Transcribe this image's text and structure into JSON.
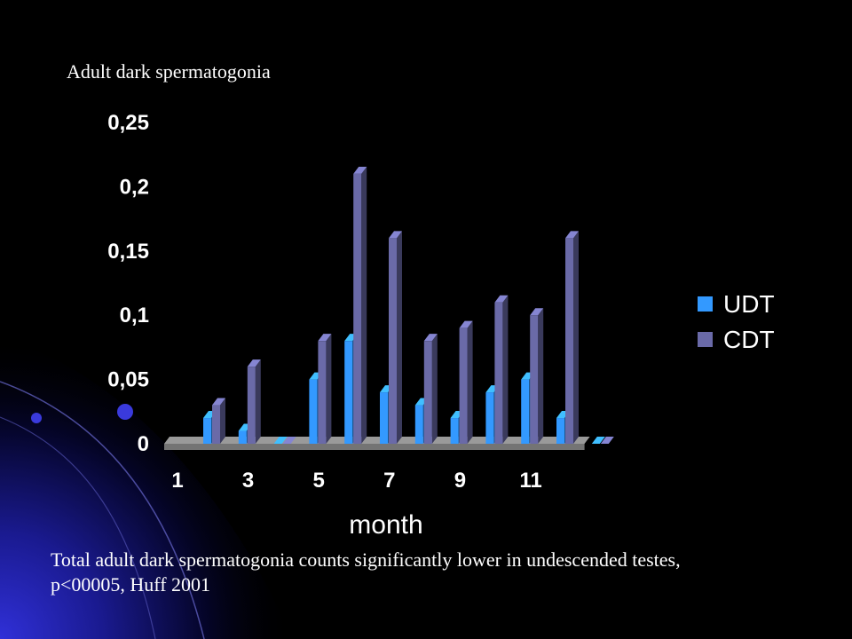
{
  "slide": {
    "title": "Adult dark spermatogonia",
    "caption_line1": "Total adult dark spermatogonia counts significantly lower in undescended testes,",
    "caption_line2": "p<00005, Huff 2001"
  },
  "colors": {
    "background": "#000000",
    "udt": "#3399ff",
    "cdt": "#6a6aa8",
    "floor": "#9a9a9a"
  },
  "chart_data": {
    "type": "bar",
    "style": "3d-clustered",
    "categories": [
      "1",
      "2",
      "3",
      "4",
      "5",
      "6",
      "7",
      "8",
      "9",
      "10",
      "11",
      "12"
    ],
    "x_tick_labels": [
      "1",
      "3",
      "5",
      "7",
      "9",
      "11"
    ],
    "xlabel": "month",
    "ylabel": "",
    "ylim": [
      0,
      0.25
    ],
    "y_ticks": [
      0,
      0.05,
      0.1,
      0.15,
      0.2,
      0.25
    ],
    "y_tick_labels": [
      "0",
      "0,05",
      "0,1",
      "0,15",
      "0,2",
      "0,25"
    ],
    "grid": false,
    "legend": "right",
    "series": [
      {
        "name": "UDT",
        "color": "#3399ff",
        "values": [
          0.02,
          0.01,
          0,
          0.05,
          0.08,
          0.04,
          0.03,
          0.02,
          0.04,
          0.05,
          0.02,
          0
        ]
      },
      {
        "name": "CDT",
        "color": "#6a6aa8",
        "values": [
          0.03,
          0.06,
          0,
          0.08,
          0.21,
          0.16,
          0.08,
          0.09,
          0.11,
          0.1,
          0.16,
          0
        ]
      }
    ]
  }
}
